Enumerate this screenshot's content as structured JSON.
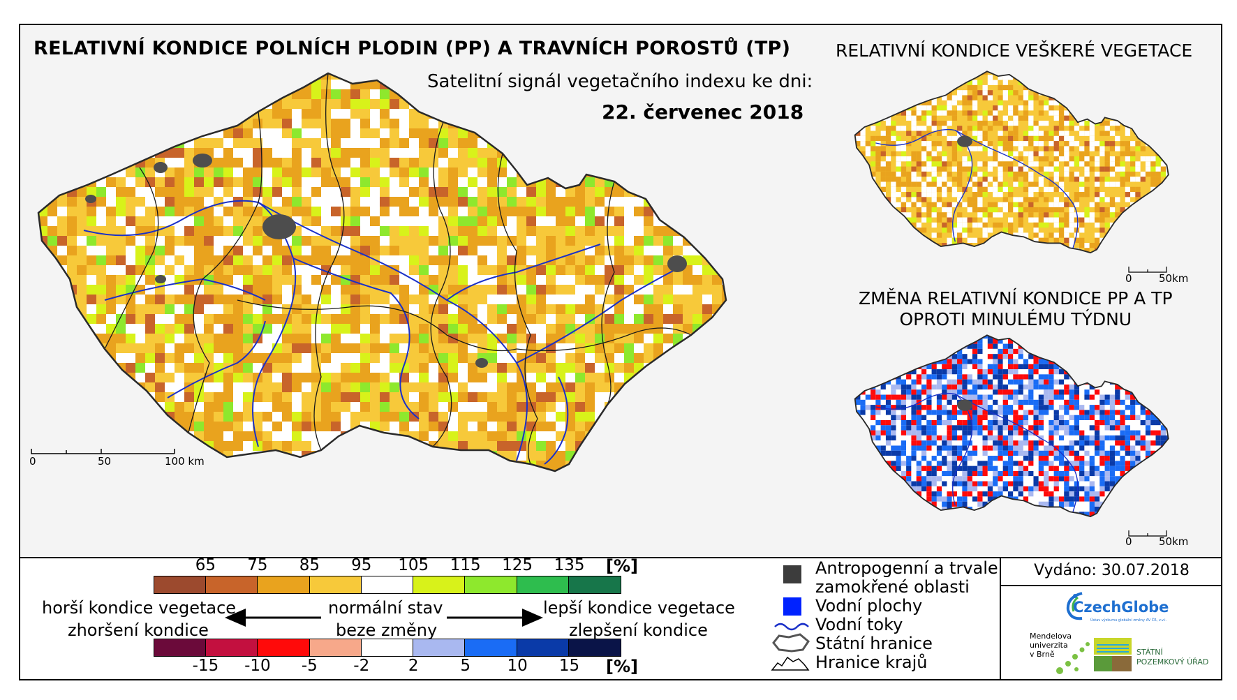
{
  "header": {
    "title": "RELATIVNÍ KONDICE POLNÍCH PLODIN (PP) A TRAVNÍCH POROSTŮ (TP)",
    "subtitle": "Satelitní signál vegetačního indexu ke dni:",
    "date": "22. červenec 2018"
  },
  "right_maps": {
    "top_title": "RELATIVNÍ KONDICE VEŠKERÉ VEGETACE",
    "change_title_line1": "ZMĚNA RELATIVNÍ KONDICE PP A TP",
    "change_title_line2": "OPROTI MINULÉMU TÝDNU"
  },
  "scalebars": {
    "main": {
      "t0": "0",
      "t1": "50",
      "t2": "100 km"
    },
    "small_top": {
      "t0": "0",
      "t1": "50km"
    },
    "small_bottom": {
      "t0": "0",
      "t1": "50km"
    }
  },
  "legend_condition": {
    "ticks": [
      "65",
      "75",
      "85",
      "95",
      "105",
      "115",
      "125",
      "135"
    ],
    "unit": "[%]",
    "colors": [
      "#9c4a2e",
      "#c8642a",
      "#e9a31e",
      "#f7c93a",
      "#ffffff",
      "#d8f21a",
      "#8ee82d",
      "#2ebd4e",
      "#17764a"
    ]
  },
  "legend_change": {
    "ticks": [
      "-15",
      "-10",
      "-5",
      "-2",
      "2",
      "5",
      "10",
      "15"
    ],
    "unit": "[%]",
    "colors": [
      "#6b0a3a",
      "#c3103f",
      "#ff0a0a",
      "#f7a88a",
      "#ffffff",
      "#a9b8f0",
      "#1a6cf5",
      "#0a3aa8",
      "#0a1448"
    ]
  },
  "legend_arrows": {
    "left_top": "horší kondice vegetace",
    "left_bottom": "zhoršení kondice",
    "center_top": "normální stav",
    "center_bottom": "beze změny",
    "right_top": "lepší kondice vegetace",
    "right_bottom": "zlepšení kondice"
  },
  "symbol_legend": {
    "anthropogenic_line1": "Antropogenní a trvale",
    "anthropogenic_line2": "zamokřené oblasti",
    "water_bodies": "Vodní plochy",
    "rivers": "Vodní toky",
    "state_border": "Státní hranice",
    "region_border": "Hranice krajů"
  },
  "issued": "Vydáno: 30.07.2018",
  "logos": {
    "czechglobe": "CzechGlobe",
    "czechglobe_sub": "Ústav výzkumu globální změny AV ČR, v.v.i.",
    "mendel_line1": "Mendelova",
    "mendel_line2": "univerzita",
    "mendel_line3": "v Brně",
    "spu_line1": "STÁTNÍ",
    "spu_line2": "POZEMKOVÝ ÚŘAD"
  },
  "map_colors": {
    "main_palette": [
      "#ffffff",
      "#f7c93a",
      "#e9a31e",
      "#e9a31e",
      "#c8642a",
      "#d8f21a",
      "#8ee82d"
    ],
    "change_palette": [
      "#ffffff",
      "#f7a88a",
      "#ff0a0a",
      "#a9b8f0",
      "#1a6cf5",
      "#0a3aa8"
    ],
    "anthropogenic": "#4d4d4d",
    "water": "#0033ff",
    "river": "#1a30c8"
  }
}
